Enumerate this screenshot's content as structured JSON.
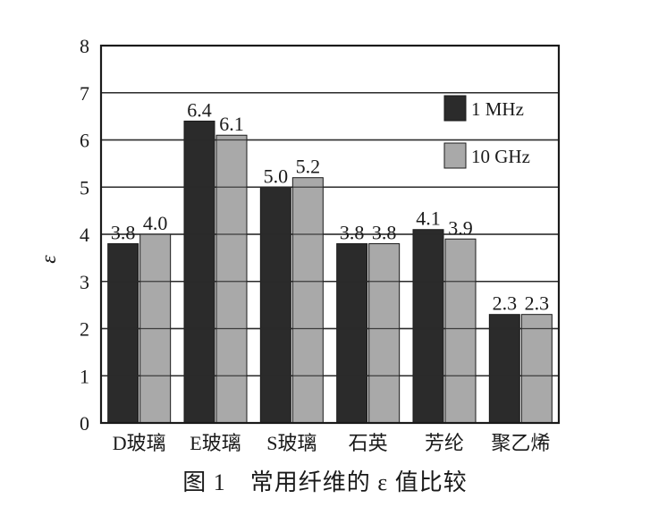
{
  "chart_data": {
    "type": "bar",
    "categories": [
      "D玻璃",
      "E玻璃",
      "S玻璃",
      "石英",
      "芳纶",
      "聚乙烯"
    ],
    "series": [
      {
        "name": "1 MHz",
        "values": [
          3.8,
          6.4,
          5.0,
          3.8,
          4.1,
          2.3
        ],
        "color": "#2b2b2b"
      },
      {
        "name": "10 GHz",
        "values": [
          4.0,
          6.1,
          5.2,
          3.8,
          3.9,
          2.3
        ],
        "color": "#a9a9a9"
      }
    ],
    "data_labels": [
      [
        "3.8",
        "6.4",
        "5.0",
        "3.8",
        "4.1",
        "2.3"
      ],
      [
        "4.0",
        "6.1",
        "5.2",
        "3.8",
        "3.9",
        "2.3"
      ]
    ],
    "ylabel": "ε",
    "ylim": [
      0,
      8
    ],
    "yticks": [
      "0",
      "1",
      "2",
      "3",
      "4",
      "5",
      "6",
      "7",
      "8"
    ],
    "grid": true,
    "legend": "top-right",
    "caption": "图 1　常用纤维的 ε 值比较"
  }
}
